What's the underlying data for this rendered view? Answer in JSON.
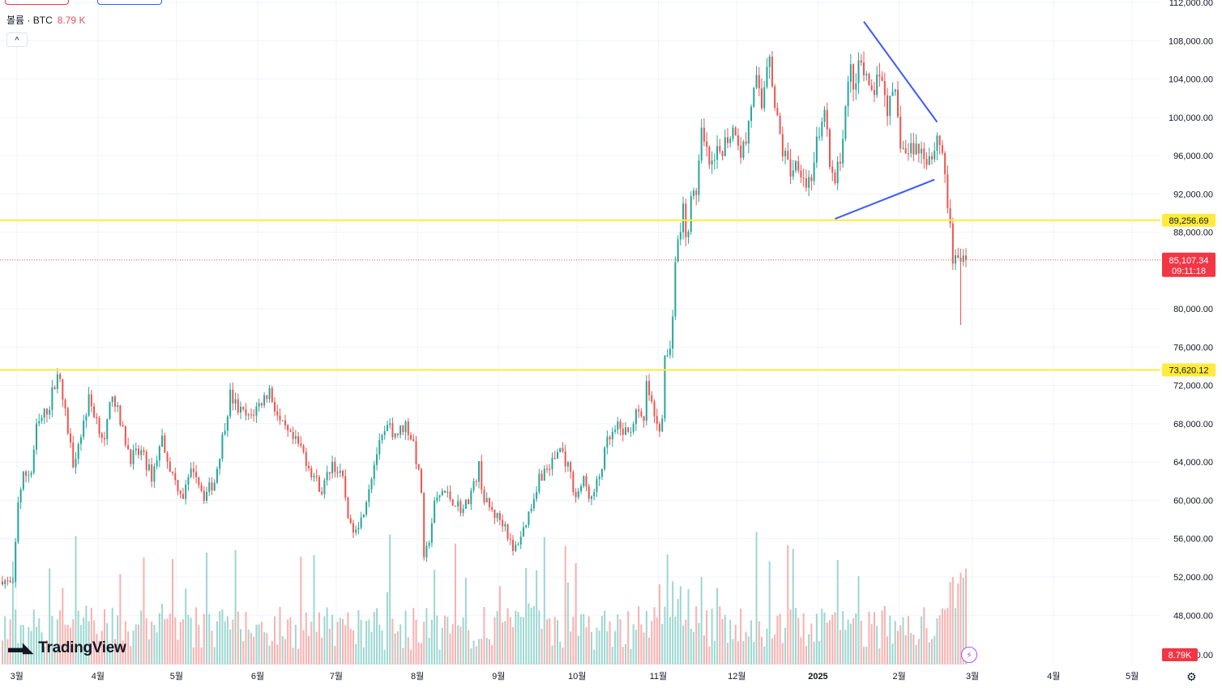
{
  "legend": {
    "label": "볼륨 · BTC",
    "value": "8.79 K"
  },
  "brand": "TradingView",
  "icons": {
    "collapse": "chevron-up-icon",
    "lightning": "lightning-icon",
    "settings": "gear-icon",
    "logo": "tradingview-logo-icon"
  },
  "colors": {
    "up": "#26a69a",
    "down": "#ef5350",
    "hline": "#ffeb3b",
    "trend": "#3d5afe",
    "price_label": "#f23645"
  },
  "chart_data": {
    "type": "candlestick",
    "symbol": "BTC",
    "ylim": [
      44000,
      112000
    ],
    "y_ticks": [
      48000,
      52000,
      56000,
      60000,
      64000,
      68000,
      72000,
      76000,
      80000,
      88000,
      92000,
      96000,
      100000,
      104000,
      108000,
      112000
    ],
    "x_ticks": [
      {
        "label": "3월",
        "t": 5.5
      },
      {
        "label": "4월",
        "t": 36.5
      },
      {
        "label": "5월",
        "t": 66.5
      },
      {
        "label": "6월",
        "t": 97.5
      },
      {
        "label": "7월",
        "t": 127.5
      },
      {
        "label": "8월",
        "t": 158.5
      },
      {
        "label": "9월",
        "t": 189.5
      },
      {
        "label": "10월",
        "t": 219.5
      },
      {
        "label": "11월",
        "t": 250.5
      },
      {
        "label": "12월",
        "t": 280.5
      },
      {
        "label": "2025",
        "t": 311.5
      },
      {
        "label": "2월",
        "t": 342.5
      },
      {
        "label": "3월",
        "t": 370.5
      },
      {
        "label": "4월",
        "t": 401.5
      },
      {
        "label": "5월",
        "t": 431.5
      }
    ],
    "horizontal_lines": [
      {
        "price": 89256.69,
        "label": "89,256.69"
      },
      {
        "price": 73620.12,
        "label": "73,620.12"
      }
    ],
    "last_price": {
      "price": 85107.34,
      "label": "85,107.34",
      "countdown": "09:11:18"
    },
    "volume_label": "8.79K",
    "trendlines": [
      {
        "t1": 329,
        "p1": 110000,
        "t2": 357,
        "p2": 99500
      },
      {
        "t1": 318,
        "p1": 89400,
        "t2": 356,
        "p2": 93500
      }
    ],
    "anchors": [
      [
        0,
        51800
      ],
      [
        4,
        51000
      ],
      [
        6,
        60000
      ],
      [
        8,
        62500
      ],
      [
        11,
        63000
      ],
      [
        13,
        67500
      ],
      [
        16,
        69000
      ],
      [
        18,
        70000
      ],
      [
        21,
        73600
      ],
      [
        24,
        69000
      ],
      [
        27,
        64000
      ],
      [
        30,
        67000
      ],
      [
        33,
        70500
      ],
      [
        36,
        68500
      ],
      [
        39,
        66000
      ],
      [
        42,
        71500
      ],
      [
        45,
        68000
      ],
      [
        49,
        64500
      ],
      [
        53,
        65000
      ],
      [
        57,
        62500
      ],
      [
        61,
        66500
      ],
      [
        65,
        62500
      ],
      [
        69,
        60500
      ],
      [
        73,
        63500
      ],
      [
        77,
        60500
      ],
      [
        81,
        62000
      ],
      [
        84,
        66500
      ],
      [
        87,
        71000
      ],
      [
        90,
        69500
      ],
      [
        94,
        68500
      ],
      [
        98,
        70000
      ],
      [
        102,
        71500
      ],
      [
        106,
        68000
      ],
      [
        110,
        66500
      ],
      [
        114,
        65500
      ],
      [
        118,
        63000
      ],
      [
        122,
        61000
      ],
      [
        126,
        64000
      ],
      [
        130,
        62000
      ],
      [
        133,
        57000
      ],
      [
        137,
        58000
      ],
      [
        140,
        61500
      ],
      [
        143,
        65000
      ],
      [
        147,
        67500
      ],
      [
        151,
        67000
      ],
      [
        154,
        68000
      ],
      [
        157,
        66000
      ],
      [
        160,
        61000
      ],
      [
        161,
        53500
      ],
      [
        163,
        56000
      ],
      [
        165,
        59500
      ],
      [
        168,
        61000
      ],
      [
        172,
        60000
      ],
      [
        176,
        59000
      ],
      [
        180,
        61500
      ],
      [
        182,
        63500
      ],
      [
        184,
        60000
      ],
      [
        188,
        58500
      ],
      [
        192,
        57500
      ],
      [
        195,
        54500
      ],
      [
        199,
        57000
      ],
      [
        202,
        59500
      ],
      [
        205,
        62500
      ],
      [
        209,
        63500
      ],
      [
        213,
        65500
      ],
      [
        216,
        63500
      ],
      [
        219,
        60500
      ],
      [
        222,
        62000
      ],
      [
        225,
        60000
      ],
      [
        228,
        62500
      ],
      [
        231,
        66000
      ],
      [
        235,
        67500
      ],
      [
        239,
        67000
      ],
      [
        242,
        69000
      ],
      [
        245,
        68000
      ],
      [
        246,
        72000
      ],
      [
        247,
        71000
      ],
      [
        250,
        67500
      ],
      [
        252,
        68000
      ],
      [
        253,
        75000
      ],
      [
        255,
        75500
      ],
      [
        256,
        80000
      ],
      [
        257,
        85000
      ],
      [
        259,
        88500
      ],
      [
        260,
        90500
      ],
      [
        261,
        87000
      ],
      [
        263,
        91000
      ],
      [
        265,
        92500
      ],
      [
        267,
        98000
      ],
      [
        269,
        96000
      ],
      [
        271,
        94500
      ],
      [
        273,
        96000
      ],
      [
        275,
        97000
      ],
      [
        277,
        98000
      ],
      [
        280,
        99000
      ],
      [
        282,
        96500
      ],
      [
        284,
        97500
      ],
      [
        286,
        101500
      ],
      [
        288,
        103500
      ],
      [
        290,
        101000
      ],
      [
        292,
        106000
      ],
      [
        293,
        107000
      ],
      [
        295,
        101000
      ],
      [
        298,
        96500
      ],
      [
        301,
        94500
      ],
      [
        304,
        95500
      ],
      [
        307,
        93000
      ],
      [
        309,
        94000
      ],
      [
        311,
        97000
      ],
      [
        313,
        98500
      ],
      [
        314,
        101500
      ],
      [
        316,
        94500
      ],
      [
        318,
        93000
      ],
      [
        320,
        96000
      ],
      [
        322,
        101000
      ],
      [
        324,
        105000
      ],
      [
        326,
        102500
      ],
      [
        327,
        106000
      ],
      [
        329,
        104500
      ],
      [
        331,
        102500
      ],
      [
        333,
        103000
      ],
      [
        336,
        104000
      ],
      [
        338,
        101000
      ],
      [
        341,
        102000
      ],
      [
        343,
        97500
      ],
      [
        345,
        96000
      ],
      [
        348,
        97000
      ],
      [
        351,
        96500
      ],
      [
        353,
        96000
      ],
      [
        355,
        96000
      ],
      [
        357,
        98000
      ],
      [
        359,
        96500
      ],
      [
        360,
        94000
      ],
      [
        361,
        91000
      ],
      [
        362,
        88000
      ],
      [
        363,
        84500
      ],
      [
        364,
        86000
      ],
      [
        366,
        84000
      ],
      [
        367,
        85500
      ],
      [
        368,
        85107
      ]
    ]
  }
}
